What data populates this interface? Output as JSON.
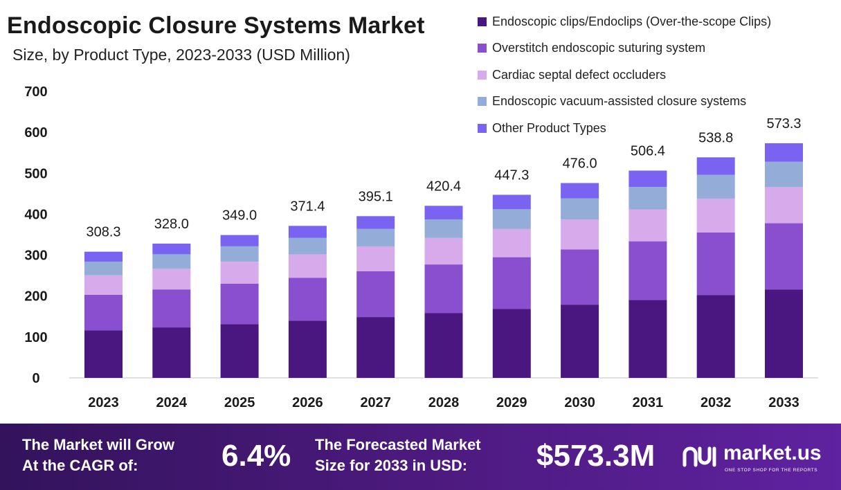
{
  "header": {
    "title": "Endoscopic Closure Systems Market",
    "subtitle": "Size, by Product Type, 2023-2033 (USD Million)"
  },
  "chart_data": {
    "type": "bar",
    "stacked": true,
    "categories": [
      "2023",
      "2024",
      "2025",
      "2026",
      "2027",
      "2028",
      "2029",
      "2030",
      "2031",
      "2032",
      "2033"
    ],
    "totals": [
      308.3,
      328.0,
      349.0,
      371.4,
      395.1,
      420.4,
      447.3,
      476.0,
      506.4,
      538.8,
      573.3
    ],
    "total_labels": [
      "308.3",
      "328.0",
      "349.0",
      "371.4",
      "395.1",
      "420.4",
      "447.3",
      "476.0",
      "506.4",
      "538.8",
      "573.3"
    ],
    "series": [
      {
        "name": "Endoscopic clips/Endoclips (Over-the-scope Clips)",
        "color": "#4a1680",
        "values": [
          115.9,
          123.3,
          131.2,
          139.6,
          148.6,
          158.1,
          168.2,
          179.0,
          190.4,
          202.6,
          215.6
        ]
      },
      {
        "name": "Overstitch endoscopic suturing system",
        "color": "#8a4fce",
        "values": [
          87.2,
          92.8,
          98.8,
          105.1,
          111.8,
          119.0,
          126.6,
          134.7,
          143.3,
          152.5,
          162.2
        ]
      },
      {
        "name": "Cardiac septal defect occluders",
        "color": "#d6aaeb",
        "values": [
          47.5,
          50.5,
          53.7,
          57.2,
          60.8,
          64.7,
          68.9,
          73.3,
          78.0,
          83.0,
          88.3
        ]
      },
      {
        "name": "Endoscopic vacuum-assisted closure systems",
        "color": "#94acd8",
        "values": [
          33.3,
          35.4,
          37.7,
          40.1,
          42.7,
          45.4,
          48.3,
          51.4,
          54.7,
          58.2,
          61.9
        ]
      },
      {
        "name": "Other Product Types",
        "color": "#7a63f0",
        "values": [
          24.4,
          26.0,
          27.6,
          29.4,
          31.2,
          33.2,
          35.3,
          37.6,
          40.0,
          42.5,
          45.3
        ]
      }
    ],
    "yticks": [
      0,
      100,
      200,
      300,
      400,
      500,
      600,
      700
    ],
    "ylim": [
      0,
      700
    ],
    "grid": false,
    "legend_position": "top-right"
  },
  "footer": {
    "cagr_label_line1": "The Market will Grow",
    "cagr_label_line2": "At the CAGR of:",
    "cagr_value": "6.4%",
    "forecast_label_line1": "The Forecasted Market",
    "forecast_label_line2": "Size for 2033 in USD:",
    "forecast_value": "$573.3M",
    "brand_name": "market.us",
    "brand_tagline": "ONE STOP SHOP FOR THE REPORTS"
  }
}
